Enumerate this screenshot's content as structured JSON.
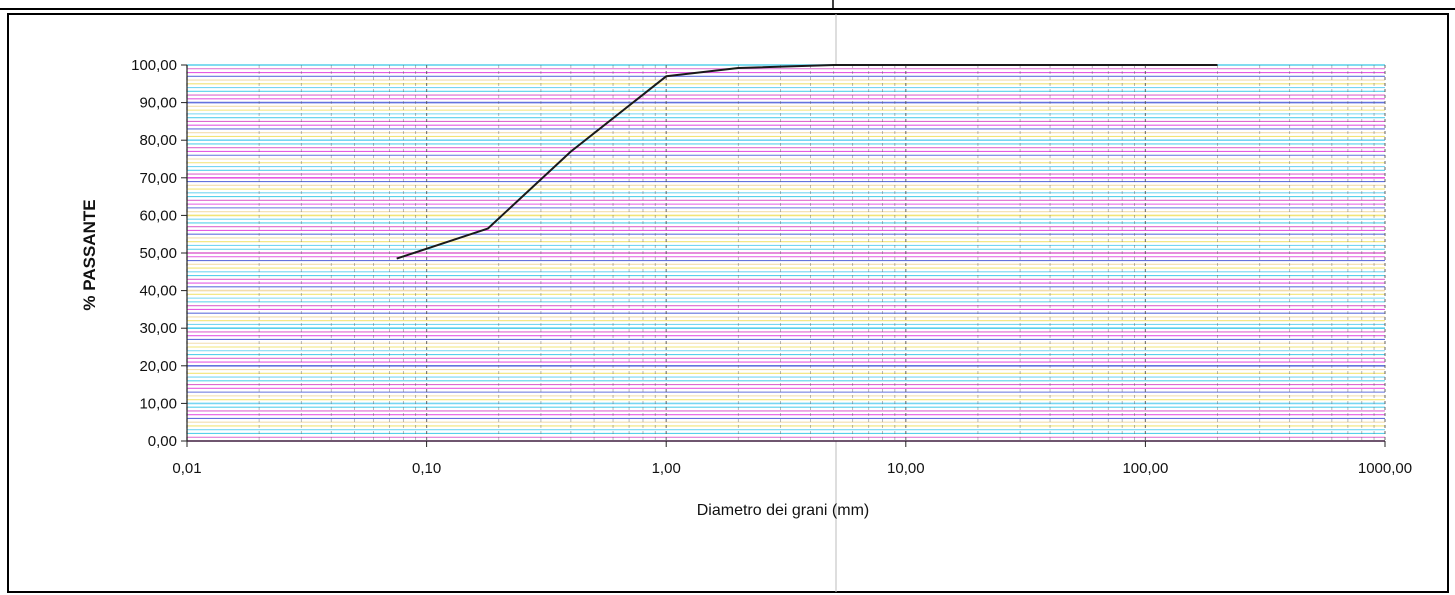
{
  "chart_data": {
    "type": "line",
    "title": "",
    "xlabel": "Diametro dei grani (mm)",
    "ylabel": "% PASSANTE",
    "x_scale": "log",
    "xlim": [
      0.01,
      1000
    ],
    "ylim": [
      0,
      100
    ],
    "grid": true,
    "legend": "none",
    "x_ticks": [
      {
        "value": 0.01,
        "label": "0,01"
      },
      {
        "value": 0.1,
        "label": "0,10"
      },
      {
        "value": 1,
        "label": "1,00"
      },
      {
        "value": 10,
        "label": "10,00"
      },
      {
        "value": 100,
        "label": "100,00"
      },
      {
        "value": 1000,
        "label": "1000,00"
      }
    ],
    "y_ticks": [
      {
        "value": 0,
        "label": "0,00"
      },
      {
        "value": 10,
        "label": "10,00"
      },
      {
        "value": 20,
        "label": "20,00"
      },
      {
        "value": 30,
        "label": "30,00"
      },
      {
        "value": 40,
        "label": "40,00"
      },
      {
        "value": 50,
        "label": "50,00"
      },
      {
        "value": 60,
        "label": "60,00"
      },
      {
        "value": 70,
        "label": "70,00"
      },
      {
        "value": 80,
        "label": "80,00"
      },
      {
        "value": 90,
        "label": "90,00"
      },
      {
        "value": 100,
        "label": "100,00"
      }
    ],
    "series": [
      {
        "x": [
          0.075,
          0.18,
          0.4,
          1.0,
          2.0,
          5.0,
          10.0,
          20.0,
          200.0
        ],
        "y": [
          48.5,
          56.5,
          77.0,
          97.0,
          99.2,
          100.0,
          100.0,
          100.0,
          100.0
        ]
      }
    ],
    "colors": {
      "curve": "#1a1a1a",
      "frame": "#000000",
      "grid_lines": [
        "#e040e0",
        "#3cc8e8",
        "#f0e060",
        "#4a5ad8",
        "#d850c8",
        "#60d0f0",
        "#f0d8a0"
      ],
      "minor_grid": "#555555"
    }
  }
}
